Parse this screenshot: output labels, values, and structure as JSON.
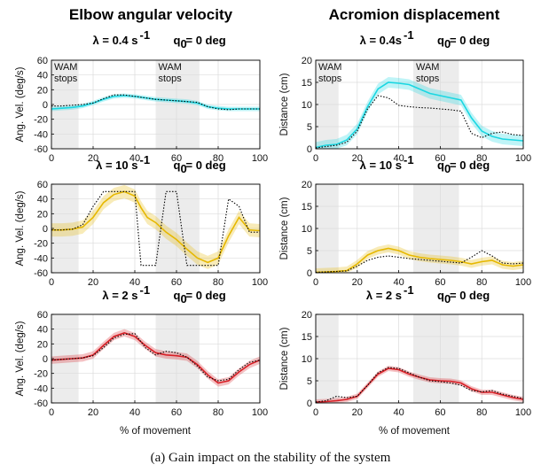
{
  "columns": [
    "Elbow angular velocity",
    "Acromion displacement"
  ],
  "caption": "(a) Gain impact on the stability of the system",
  "xlabel": "% of movement",
  "wam_label_lines": [
    "WAM",
    "stops"
  ],
  "colors": {
    "cyan": "#1ad7e2",
    "yellow": "#e6b800",
    "red": "#d81f26",
    "shade": "#ececec",
    "reference": "#000000"
  },
  "chart_data": [
    {
      "id": "vel-0.4",
      "type": "line",
      "column": 0,
      "row": 0,
      "title_lambda": "λ = 0.4 s",
      "title_exp": "-1",
      "title_q0": "q",
      "title_q0_sub": "0",
      "title_q0_rest": " = 0 deg",
      "ylabel": "Ang. Vel. (deg/s)",
      "xlim": [
        0,
        100
      ],
      "ylim": [
        -60,
        60
      ],
      "xticks": [
        0,
        20,
        40,
        60,
        80,
        100
      ],
      "yticks": [
        -60,
        -40,
        -20,
        0,
        20,
        40,
        60
      ],
      "shaded": [
        [
          0,
          13
        ],
        [
          50,
          71
        ]
      ],
      "wam_labels": true,
      "color_key": "cyan",
      "band": 3,
      "x": [
        0,
        5,
        10,
        15,
        20,
        25,
        30,
        35,
        40,
        45,
        50,
        55,
        60,
        65,
        70,
        75,
        80,
        85,
        90,
        95,
        100
      ],
      "series": [
        {
          "values": [
            -6,
            -5,
            -4,
            -2,
            2,
            7,
            11,
            12,
            11,
            9,
            7,
            6,
            5,
            4,
            2,
            -3,
            -5,
            -6,
            -6,
            -6,
            -6
          ]
        },
        {
          "values": [
            -2,
            -2,
            -1,
            0,
            2,
            8,
            13,
            13,
            11,
            9,
            7,
            6,
            5,
            4,
            3,
            -3,
            -6,
            -7,
            -6,
            -6,
            -6
          ],
          "reference": true
        }
      ]
    },
    {
      "id": "vel-10",
      "type": "line",
      "column": 0,
      "row": 1,
      "title_lambda": "λ = 10 s",
      "title_exp": "-1",
      "title_q0": "q",
      "title_q0_sub": "0",
      "title_q0_rest": " = 0 deg",
      "ylabel": "Ang. Vel. (deg/s)",
      "xlim": [
        0,
        100
      ],
      "ylim": [
        -60,
        60
      ],
      "xticks": [
        0,
        20,
        40,
        60,
        80,
        100
      ],
      "yticks": [
        -60,
        -40,
        -20,
        0,
        20,
        40,
        60
      ],
      "shaded": [
        [
          0,
          13
        ],
        [
          50,
          71
        ]
      ],
      "wam_labels": false,
      "color_key": "yellow",
      "band": 9,
      "x": [
        0,
        5,
        10,
        15,
        20,
        25,
        30,
        35,
        40,
        43,
        46,
        50,
        55,
        60,
        65,
        70,
        75,
        80,
        85,
        90,
        95,
        100
      ],
      "series": [
        {
          "values": [
            -2,
            -2,
            -1,
            2,
            15,
            35,
            46,
            50,
            44,
            28,
            15,
            8,
            -5,
            -15,
            -28,
            -40,
            -46,
            -40,
            -10,
            15,
            -2,
            -3
          ]
        },
        {
          "values": [
            -2,
            -2,
            -1,
            5,
            30,
            50,
            50,
            50,
            50,
            -50,
            -50,
            -50,
            50,
            50,
            -50,
            -50,
            -50,
            -50,
            40,
            30,
            -5,
            -5
          ],
          "reference": true
        }
      ]
    },
    {
      "id": "vel-2",
      "type": "line",
      "column": 0,
      "row": 2,
      "title_lambda": "λ = 2 s",
      "title_exp": "-1",
      "title_q0": "q",
      "title_q0_sub": "0",
      "title_q0_rest": " = 0 deg",
      "ylabel": "Ang. Vel. (deg/s)",
      "xlim": [
        0,
        100
      ],
      "ylim": [
        -60,
        60
      ],
      "xticks": [
        0,
        20,
        40,
        60,
        80,
        100
      ],
      "yticks": [
        -60,
        -40,
        -20,
        0,
        20,
        40,
        60
      ],
      "shaded": [
        [
          0,
          13
        ],
        [
          50,
          71
        ]
      ],
      "wam_labels": false,
      "color_key": "red",
      "band": 5,
      "x": [
        0,
        5,
        10,
        15,
        20,
        25,
        30,
        35,
        40,
        45,
        50,
        55,
        60,
        65,
        70,
        75,
        80,
        85,
        90,
        95,
        100
      ],
      "series": [
        {
          "values": [
            -2,
            -1,
            0,
            1,
            5,
            18,
            30,
            35,
            30,
            18,
            8,
            5,
            4,
            2,
            -8,
            -22,
            -33,
            -30,
            -18,
            -8,
            -2
          ]
        },
        {
          "values": [
            -2,
            -1,
            0,
            1,
            4,
            15,
            28,
            33,
            34,
            15,
            5,
            10,
            8,
            2,
            -10,
            -25,
            -30,
            -28,
            -15,
            -5,
            -2
          ],
          "reference": true
        }
      ]
    },
    {
      "id": "disp-0.4",
      "type": "line",
      "column": 1,
      "row": 0,
      "title_lambda": "λ = 0.4s",
      "title_exp": "-1",
      "title_q0": "q",
      "title_q0_sub": "0",
      "title_q0_rest": " = 0 deg",
      "ylabel": "Distance (cm)",
      "xlim": [
        0,
        100
      ],
      "ylim": [
        0,
        20
      ],
      "xticks": [
        0,
        20,
        40,
        60,
        80,
        100
      ],
      "yticks": [
        0,
        5,
        10,
        15,
        20
      ],
      "shaded": [
        [
          0,
          11
        ],
        [
          47,
          69
        ]
      ],
      "wam_labels": true,
      "color_key": "cyan",
      "band": 1.2,
      "x": [
        0,
        5,
        10,
        15,
        20,
        25,
        30,
        35,
        40,
        45,
        50,
        55,
        60,
        65,
        70,
        75,
        80,
        85,
        90,
        95,
        100
      ],
      "series": [
        {
          "values": [
            0.3,
            0.8,
            1.0,
            2.0,
            4.5,
            9.5,
            13.5,
            15.0,
            14.8,
            14.5,
            13.5,
            12.5,
            12.0,
            11.5,
            11.0,
            7.0,
            4.0,
            2.8,
            2.2,
            2.0,
            1.8
          ]
        },
        {
          "values": [
            0.2,
            0.5,
            0.8,
            1.5,
            4.0,
            9.0,
            12.0,
            11.5,
            9.8,
            9.5,
            9.3,
            9.2,
            9.0,
            8.8,
            8.5,
            3.5,
            2.5,
            3.5,
            3.8,
            3.2,
            3.0
          ],
          "reference": true
        }
      ]
    },
    {
      "id": "disp-10",
      "type": "line",
      "column": 1,
      "row": 1,
      "title_lambda": "λ = 10 s",
      "title_exp": "-1",
      "title_q0": "q",
      "title_q0_sub": "0",
      "title_q0_rest": " = 0 deg",
      "ylabel": "Distance (cm)",
      "xlim": [
        0,
        100
      ],
      "ylim": [
        0,
        20
      ],
      "xticks": [
        0,
        20,
        40,
        60,
        80,
        100
      ],
      "yticks": [
        0,
        5,
        10,
        15,
        20
      ],
      "shaded": [
        [
          0,
          11
        ],
        [
          47,
          69
        ]
      ],
      "wam_labels": false,
      "color_key": "yellow",
      "band": 0.9,
      "x": [
        0,
        5,
        10,
        15,
        20,
        25,
        30,
        35,
        40,
        45,
        50,
        55,
        60,
        65,
        70,
        75,
        80,
        85,
        90,
        95,
        100
      ],
      "series": [
        {
          "values": [
            0.1,
            0.2,
            0.3,
            0.5,
            2.0,
            4.0,
            5.0,
            5.5,
            5.0,
            4.0,
            3.5,
            3.2,
            3.0,
            2.8,
            2.5,
            2.0,
            2.5,
            2.8,
            1.8,
            1.5,
            1.8
          ]
        },
        {
          "values": [
            0.1,
            0.2,
            0.3,
            0.4,
            1.5,
            2.8,
            3.5,
            3.8,
            3.5,
            3.2,
            3.0,
            2.8,
            2.6,
            2.4,
            2.2,
            3.5,
            5.0,
            3.8,
            2.2,
            2.0,
            2.2
          ],
          "reference": true
        }
      ]
    },
    {
      "id": "disp-2",
      "type": "line",
      "column": 1,
      "row": 2,
      "title_lambda": "λ = 2 s",
      "title_exp": "-1",
      "title_q0": "q",
      "title_q0_sub": "0",
      "title_q0_rest": " = 0 deg",
      "ylabel": "Distance (cm)",
      "xlim": [
        0,
        100
      ],
      "ylim": [
        0,
        20
      ],
      "xticks": [
        0,
        20,
        40,
        60,
        80,
        100
      ],
      "yticks": [
        0,
        5,
        10,
        15,
        20
      ],
      "shaded": [
        [
          0,
          11
        ],
        [
          47,
          69
        ]
      ],
      "wam_labels": false,
      "color_key": "red",
      "band": 0.6,
      "x": [
        0,
        5,
        10,
        15,
        20,
        25,
        30,
        35,
        40,
        45,
        50,
        55,
        60,
        65,
        70,
        75,
        80,
        85,
        90,
        95,
        100
      ],
      "series": [
        {
          "values": [
            0.2,
            0.3,
            0.5,
            0.8,
            1.5,
            4.0,
            6.5,
            7.8,
            7.5,
            6.5,
            5.8,
            5.2,
            5.0,
            4.9,
            4.5,
            3.2,
            2.4,
            2.4,
            1.8,
            1.2,
            0.8
          ]
        },
        {
          "values": [
            0.2,
            0.5,
            1.5,
            1.2,
            1.5,
            4.0,
            6.8,
            8.0,
            7.8,
            6.8,
            5.8,
            5.0,
            4.8,
            4.5,
            4.0,
            2.8,
            2.5,
            2.8,
            2.0,
            1.5,
            1.0
          ],
          "reference": true
        }
      ]
    }
  ]
}
